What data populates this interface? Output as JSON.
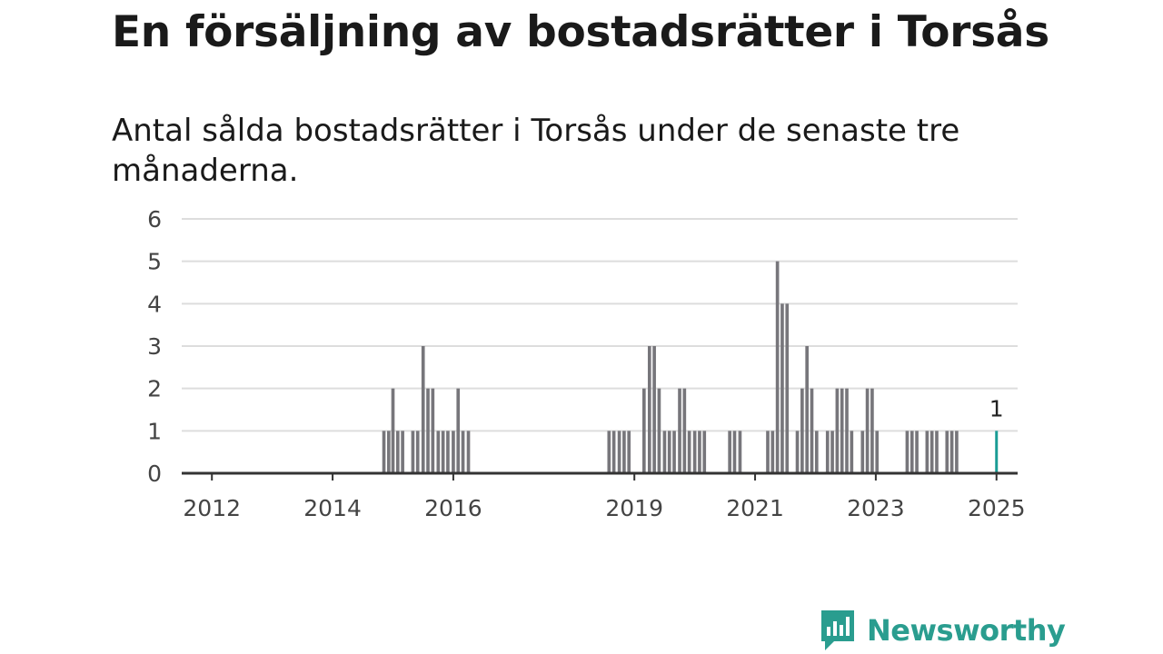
{
  "title": "En försäljning av bostadsrätter i Torsås",
  "subtitle": "Antal sålda bostadsrätter i Torsås under de senaste tre månaderna.",
  "brand": {
    "name": "Newsworthy",
    "icon": "newsworthy-logo-icon"
  },
  "colors": {
    "bar": "#77767b",
    "highlight": "#1a9c95",
    "grid": "#dddddd",
    "axis": "#333333"
  },
  "chart_data": {
    "type": "bar",
    "ylim": [
      0,
      6
    ],
    "yticks": [
      0,
      1,
      2,
      3,
      4,
      5,
      6
    ],
    "xlim": [
      2011.5,
      2025.35
    ],
    "xticks": [
      2012,
      2014,
      2016,
      2019,
      2021,
      2023,
      2025
    ],
    "bar_width_years": 0.055,
    "values": [
      {
        "x": 2014.85,
        "y": 1
      },
      {
        "x": 2014.93,
        "y": 1
      },
      {
        "x": 2015.0,
        "y": 2
      },
      {
        "x": 2015.08,
        "y": 1
      },
      {
        "x": 2015.16,
        "y": 1
      },
      {
        "x": 2015.33,
        "y": 1
      },
      {
        "x": 2015.41,
        "y": 1
      },
      {
        "x": 2015.5,
        "y": 3
      },
      {
        "x": 2015.58,
        "y": 2
      },
      {
        "x": 2015.66,
        "y": 2
      },
      {
        "x": 2015.75,
        "y": 1
      },
      {
        "x": 2015.83,
        "y": 1
      },
      {
        "x": 2015.91,
        "y": 1
      },
      {
        "x": 2016.0,
        "y": 1
      },
      {
        "x": 2016.08,
        "y": 2
      },
      {
        "x": 2016.16,
        "y": 1
      },
      {
        "x": 2016.25,
        "y": 1
      },
      {
        "x": 2018.58,
        "y": 1
      },
      {
        "x": 2018.66,
        "y": 1
      },
      {
        "x": 2018.75,
        "y": 1
      },
      {
        "x": 2018.83,
        "y": 1
      },
      {
        "x": 2018.91,
        "y": 1
      },
      {
        "x": 2019.16,
        "y": 2
      },
      {
        "x": 2019.25,
        "y": 3
      },
      {
        "x": 2019.33,
        "y": 3
      },
      {
        "x": 2019.41,
        "y": 2
      },
      {
        "x": 2019.5,
        "y": 1
      },
      {
        "x": 2019.58,
        "y": 1
      },
      {
        "x": 2019.66,
        "y": 1
      },
      {
        "x": 2019.75,
        "y": 2
      },
      {
        "x": 2019.83,
        "y": 2
      },
      {
        "x": 2019.91,
        "y": 1
      },
      {
        "x": 2020.0,
        "y": 1
      },
      {
        "x": 2020.08,
        "y": 1
      },
      {
        "x": 2020.16,
        "y": 1
      },
      {
        "x": 2020.58,
        "y": 1
      },
      {
        "x": 2020.66,
        "y": 1
      },
      {
        "x": 2020.75,
        "y": 1
      },
      {
        "x": 2021.21,
        "y": 1
      },
      {
        "x": 2021.29,
        "y": 1
      },
      {
        "x": 2021.37,
        "y": 5
      },
      {
        "x": 2021.45,
        "y": 4
      },
      {
        "x": 2021.53,
        "y": 4
      },
      {
        "x": 2021.7,
        "y": 1
      },
      {
        "x": 2021.78,
        "y": 2
      },
      {
        "x": 2021.86,
        "y": 3
      },
      {
        "x": 2021.94,
        "y": 2
      },
      {
        "x": 2022.02,
        "y": 1
      },
      {
        "x": 2022.2,
        "y": 1
      },
      {
        "x": 2022.28,
        "y": 1
      },
      {
        "x": 2022.36,
        "y": 2
      },
      {
        "x": 2022.44,
        "y": 2
      },
      {
        "x": 2022.52,
        "y": 2
      },
      {
        "x": 2022.6,
        "y": 1
      },
      {
        "x": 2022.78,
        "y": 1
      },
      {
        "x": 2022.86,
        "y": 2
      },
      {
        "x": 2022.94,
        "y": 2
      },
      {
        "x": 2023.02,
        "y": 1
      },
      {
        "x": 2023.52,
        "y": 1
      },
      {
        "x": 2023.6,
        "y": 1
      },
      {
        "x": 2023.68,
        "y": 1
      },
      {
        "x": 2023.85,
        "y": 1
      },
      {
        "x": 2023.93,
        "y": 1
      },
      {
        "x": 2024.01,
        "y": 1
      },
      {
        "x": 2024.18,
        "y": 1
      },
      {
        "x": 2024.26,
        "y": 1
      },
      {
        "x": 2024.34,
        "y": 1
      },
      {
        "x": 2025.0,
        "y": 1,
        "highlight": true,
        "label": "1"
      }
    ]
  }
}
